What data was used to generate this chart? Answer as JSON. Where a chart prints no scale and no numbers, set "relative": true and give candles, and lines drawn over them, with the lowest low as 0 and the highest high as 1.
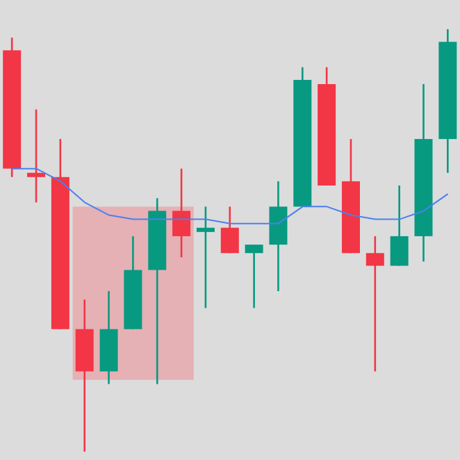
{
  "chart_data": {
    "type": "candlestick",
    "relative": true,
    "categories": [
      null,
      null,
      null,
      null,
      null,
      null,
      null,
      null,
      null,
      null,
      null,
      null,
      null,
      null,
      null,
      null,
      null,
      null,
      null
    ],
    "ohlc": [
      [
        0.95,
        0.98,
        0.65,
        0.67
      ],
      [
        0.66,
        0.81,
        0.59,
        0.65
      ],
      [
        0.65,
        0.74,
        0.29,
        0.29
      ],
      [
        0.29,
        0.36,
        0,
        0.19
      ],
      [
        0.19,
        0.38,
        0.16,
        0.29
      ],
      [
        0.29,
        0.51,
        0.29,
        0.43
      ],
      [
        0.43,
        0.6,
        0.16,
        0.57
      ],
      [
        0.57,
        0.67,
        0.46,
        0.51
      ],
      [
        0.52,
        0.58,
        0.34,
        0.53
      ],
      [
        0.53,
        0.58,
        0.47,
        0.47
      ],
      [
        0.47,
        0.49,
        0.34,
        0.49
      ],
      [
        0.49,
        0.64,
        0.38,
        0.58
      ],
      [
        0.58,
        0.91,
        0.58,
        0.88
      ],
      [
        0.87,
        0.91,
        0.63,
        0.63
      ],
      [
        0.64,
        0.74,
        0.47,
        0.47
      ],
      [
        0.47,
        0.51,
        0.19,
        0.44
      ],
      [
        0.44,
        0.63,
        0.44,
        0.51
      ],
      [
        0.51,
        0.87,
        0.45,
        0.74
      ],
      [
        0.74,
        1,
        0.66,
        0.97
      ]
    ],
    "colors": [
      "#f23645",
      "#f23645",
      "#f23645",
      "#f23645",
      "#089981",
      "#089981",
      "#089981",
      "#f23645",
      "#089981",
      "#f23645",
      "#089981",
      "#089981",
      "#089981",
      "#f23645",
      "#f23645",
      "#f23645",
      "#089981",
      "#089981",
      "#089981"
    ],
    "series": [
      {
        "type": "line",
        "color": "#4c7ff0",
        "values": [
          0.67,
          0.67,
          0.64,
          0.59,
          0.56,
          0.55,
          0.55,
          0.55,
          0.55,
          0.54,
          0.54,
          0.54,
          0.58,
          0.58,
          0.56,
          0.55,
          0.55,
          0.57,
          0.61
        ]
      }
    ]
  }
}
